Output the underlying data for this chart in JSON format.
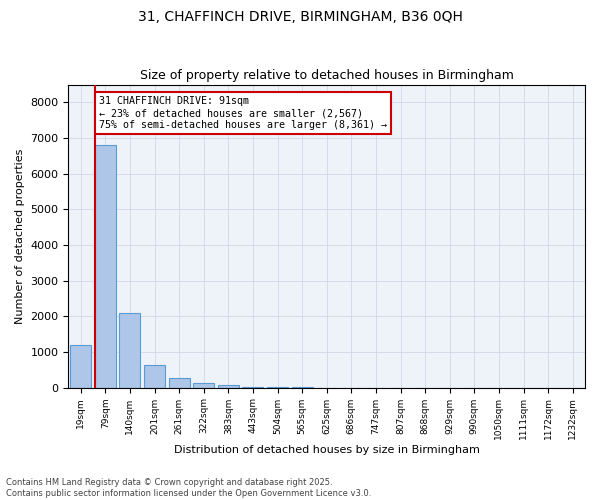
{
  "title1": "31, CHAFFINCH DRIVE, BIRMINGHAM, B36 0QH",
  "title2": "Size of property relative to detached houses in Birmingham",
  "xlabel": "Distribution of detached houses by size in Birmingham",
  "ylabel": "Number of detached properties",
  "annotation_line1": "31 CHAFFINCH DRIVE: 91sqm",
  "annotation_line2": "← 23% of detached houses are smaller (2,567)",
  "annotation_line3": "75% of semi-detached houses are larger (8,361) →",
  "bar_labels": [
    "19sqm",
    "79sqm",
    "140sqm",
    "201sqm",
    "261sqm",
    "322sqm",
    "383sqm",
    "443sqm",
    "504sqm",
    "565sqm",
    "625sqm",
    "686sqm",
    "747sqm",
    "807sqm",
    "868sqm",
    "929sqm",
    "990sqm",
    "1050sqm",
    "1111sqm",
    "1172sqm",
    "1232sqm"
  ],
  "bar_values": [
    1200,
    6800,
    2100,
    630,
    270,
    120,
    60,
    30,
    20,
    10,
    0,
    0,
    0,
    0,
    0,
    0,
    0,
    0,
    0,
    0,
    0
  ],
  "bar_color": "#aec6e8",
  "bar_edge_color": "#5b9bd5",
  "vline_color": "#cc0000",
  "annotation_box_color": "#cc0000",
  "grid_color": "#d0d8e8",
  "plot_bg_color": "#eef3fa",
  "ylim": [
    0,
    8500
  ],
  "yticks": [
    0,
    1000,
    2000,
    3000,
    4000,
    5000,
    6000,
    7000,
    8000
  ],
  "footer1": "Contains HM Land Registry data © Crown copyright and database right 2025.",
  "footer2": "Contains public sector information licensed under the Open Government Licence v3.0."
}
